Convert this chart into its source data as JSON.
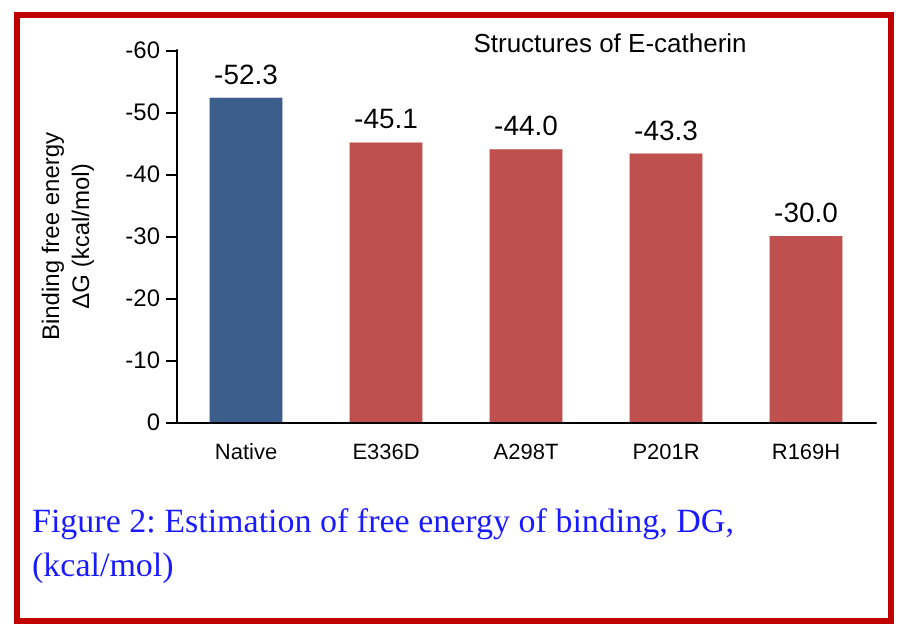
{
  "chart_data": {
    "type": "bar",
    "title": "Structures of E-catherin",
    "ylabel": "Binding free energy\nΔG (kcal/mol)",
    "categories": [
      "Native",
      "E336D",
      "A298T",
      "P201R",
      "R169H"
    ],
    "values": [
      -52.3,
      -45.1,
      -44.0,
      -43.3,
      -30.0
    ],
    "colors": [
      "#3b5e8c",
      "#c0504d",
      "#c0504d",
      "#c0504d",
      "#c0504d"
    ],
    "value_labels": [
      "-52.3",
      "-45.1",
      "-44.0",
      "-43.3",
      "-30.0"
    ],
    "ylim": [
      0,
      -60
    ],
    "yticks": [
      0,
      -10,
      -20,
      -30,
      -40,
      -50,
      -60
    ],
    "annotations": [
      "Figure 2: Estimation of free energy of binding, DG, (kcal/mol)"
    ]
  }
}
